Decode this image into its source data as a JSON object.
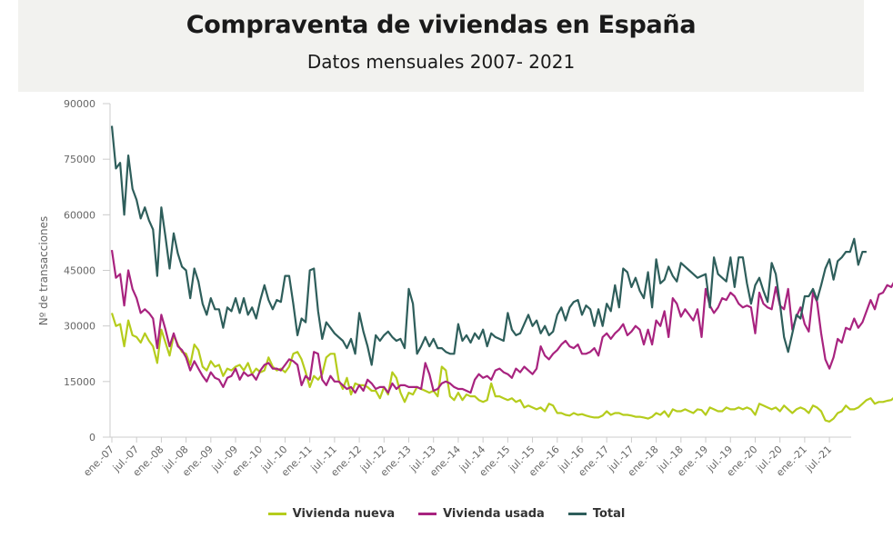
{
  "chart_data": {
    "type": "line",
    "title": "Compraventa de viviendas en España",
    "subtitle": "Datos mensuales 2007- 2021",
    "xlabel": "",
    "ylabel": "Nº de transacciones",
    "ylim": [
      0,
      90000
    ],
    "yticks": [
      0,
      15000,
      30000,
      45000,
      60000,
      75000,
      90000
    ],
    "xtick_labels": [
      "ene.-07",
      "jul.-07",
      "ene.-08",
      "jul.-08",
      "ene.-09",
      "jul.-09",
      "ene.-10",
      "jul.-10",
      "ene.-11",
      "jul.-11",
      "ene.-12",
      "jul.-12",
      "ene.-13",
      "jul.-13",
      "ene.-14",
      "jul.-14",
      "ene.-15",
      "jul.-15",
      "ene.-16",
      "jul.-16",
      "ene.-17",
      "jul.-17",
      "ene.-18",
      "jul.-18",
      "ene.-19",
      "jul.-19",
      "ene.-20",
      "jul.-20",
      "ene.-21",
      "jul.-21"
    ],
    "x_start": "ene-07",
    "x_frequency": "monthly",
    "grid": false,
    "legend_position": "bottom",
    "series": [
      {
        "name": "Vivienda nueva",
        "color": "#b5cc1c",
        "values": [
          33500,
          30000,
          30500,
          24500,
          31500,
          27500,
          27000,
          25500,
          28000,
          26000,
          24500,
          20000,
          29000,
          25500,
          22000,
          27500,
          25000,
          23000,
          22500,
          19500,
          25000,
          23500,
          19000,
          18000,
          20500,
          19000,
          19500,
          16500,
          18500,
          18000,
          19000,
          19500,
          18000,
          20000,
          17000,
          18500,
          17500,
          18000,
          21500,
          19000,
          18000,
          18500,
          17500,
          19000,
          22500,
          23000,
          21000,
          17500,
          13500,
          16500,
          15500,
          17000,
          21500,
          22500,
          22500,
          15500,
          13000,
          16000,
          11500,
          14500,
          14000,
          14000,
          13500,
          12500,
          12500,
          10500,
          13500,
          11500,
          17500,
          16000,
          12000,
          9500,
          12000,
          11500,
          13500,
          13000,
          12500,
          12000,
          12500,
          11000,
          19000,
          18000,
          11000,
          10000,
          12000,
          10000,
          11500,
          11000,
          11000,
          10000,
          9500,
          10000,
          14500,
          11000,
          11000,
          10500,
          10000,
          10500,
          9500,
          10000,
          8000,
          8500,
          8000,
          7500,
          8000,
          7000,
          9000,
          8500,
          6500,
          6500,
          6000,
          5800,
          6500,
          6000,
          6200,
          5800,
          5500,
          5300,
          5300,
          5800,
          7000,
          6000,
          6500,
          6500,
          6000,
          6000,
          5800,
          5500,
          5500,
          5300,
          5000,
          5500,
          6500,
          6000,
          7000,
          5500,
          7500,
          7000,
          7000,
          7500,
          7000,
          6500,
          7500,
          7300,
          6000,
          8000,
          7500,
          7000,
          7000,
          8000,
          7500,
          7500,
          8000,
          7500,
          8000,
          7500,
          6000,
          9000,
          8500,
          8000,
          7500,
          8000,
          7000,
          8500,
          7500,
          6500,
          7500,
          8000,
          7500,
          6500,
          8500,
          8000,
          7000,
          4500,
          4200,
          5000,
          6500,
          7000,
          8500,
          7500,
          7500,
          8000,
          9000,
          10000,
          10500,
          9000,
          9500,
          9500,
          9800,
          10000,
          11000,
          9800,
          10500,
          9500
        ]
      },
      {
        "name": "Vivienda usada",
        "color": "#a8237f",
        "values": [
          50500,
          43000,
          44000,
          35500,
          45000,
          40000,
          37500,
          33500,
          34500,
          33500,
          32000,
          24000,
          33000,
          29000,
          24500,
          28000,
          24500,
          23500,
          21500,
          18000,
          20500,
          18500,
          16500,
          15000,
          17500,
          16000,
          15500,
          13500,
          16000,
          16500,
          18500,
          15500,
          17500,
          16500,
          17000,
          15500,
          18000,
          19500,
          20000,
          18500,
          18500,
          18000,
          19500,
          21000,
          20500,
          19500,
          14000,
          16500,
          15500,
          23000,
          22500,
          15500,
          14000,
          16500,
          15000,
          15000,
          14000,
          13000,
          13500,
          12000,
          14000,
          12500,
          15500,
          14500,
          13000,
          13500,
          13500,
          12000,
          14500,
          13000,
          14000,
          14000,
          13500,
          13500,
          13500,
          13000,
          20000,
          17000,
          12500,
          13000,
          14500,
          15000,
          14500,
          13500,
          13000,
          13000,
          12500,
          12000,
          15500,
          17000,
          16000,
          16500,
          15500,
          18000,
          18500,
          17500,
          17000,
          16000,
          18500,
          17500,
          19000,
          18000,
          17000,
          18500,
          24500,
          22000,
          21000,
          22500,
          23500,
          25000,
          26000,
          24500,
          24000,
          25000,
          22500,
          22500,
          23000,
          24000,
          22000,
          27000,
          28000,
          26500,
          28000,
          29000,
          30500,
          27500,
          28500,
          30000,
          29000,
          25000,
          29000,
          25000,
          31500,
          30000,
          34000,
          27000,
          37500,
          36000,
          32500,
          34500,
          33000,
          31500,
          34500,
          27000,
          40000,
          35500,
          33500,
          35000,
          37500,
          37000,
          39000,
          38000,
          36000,
          35000,
          35500,
          35000,
          28000,
          39000,
          36000,
          35000,
          34500,
          40500,
          35500,
          34500,
          40000,
          29000,
          32500,
          35000,
          30500,
          28500,
          39000,
          36500,
          28000,
          21000,
          18500,
          21500,
          26500,
          25500,
          29500,
          29000,
          32000,
          29500,
          31000,
          34000,
          37000,
          34500,
          38500,
          39000,
          41000,
          40500,
          42500,
          37000,
          39500,
          38500
        ]
      },
      {
        "name": "Total",
        "color": "#2e5e5b",
        "values": [
          84000,
          72500,
          74000,
          60000,
          76000,
          67000,
          64000,
          59000,
          62000,
          58500,
          56000,
          43500,
          62000,
          54000,
          45500,
          55000,
          49500,
          46000,
          45000,
          37500,
          45500,
          42000,
          36000,
          33000,
          37500,
          34500,
          34500,
          29500,
          35000,
          34000,
          37500,
          33500,
          37500,
          33000,
          35000,
          32000,
          37000,
          41000,
          37000,
          34500,
          37000,
          36500,
          43500,
          43500,
          36000,
          27500,
          32000,
          31000,
          45000,
          45500,
          34000,
          26500,
          31000,
          29500,
          28000,
          27000,
          26000,
          24000,
          26500,
          22500,
          33500,
          28500,
          24500,
          19500,
          27500,
          26000,
          27500,
          28500,
          27000,
          26000,
          26500,
          24000,
          40000,
          36000,
          22500,
          24500,
          27000,
          24500,
          26500,
          24000,
          24000,
          23000,
          22500,
          22500,
          30500,
          26000,
          27500,
          25500,
          28000,
          26500,
          29000,
          24500,
          28000,
          27000,
          26500,
          26000,
          33500,
          29000,
          27500,
          28000,
          30500,
          33000,
          30000,
          31500,
          28000,
          30000,
          27500,
          28500,
          33000,
          35000,
          31500,
          35000,
          36500,
          37000,
          33000,
          35500,
          34500,
          30000,
          34500,
          30000,
          36000,
          34000,
          41000,
          35000,
          45500,
          44500,
          40500,
          43000,
          39500,
          37500,
          44500,
          35000,
          48000,
          41500,
          42500,
          46000,
          43500,
          42000,
          47000,
          46000,
          45000,
          44000,
          43000,
          43500,
          44000,
          35000,
          48500,
          44000,
          43000,
          42000,
          48500,
          40500,
          48500,
          48500,
          41500,
          36000,
          41000,
          43000,
          39500,
          36500,
          47000,
          44000,
          36000,
          27000,
          23000,
          28000,
          33000,
          32000,
          38000,
          38000,
          40000,
          37000,
          41000,
          45500,
          48000,
          42500,
          47500,
          48500,
          50000,
          50000,
          53500,
          46500,
          50000,
          50000
        ]
      }
    ]
  },
  "legend": {
    "items": [
      {
        "label": "Vivienda nueva"
      },
      {
        "label": "Vivienda usada"
      },
      {
        "label": "Total"
      }
    ]
  }
}
